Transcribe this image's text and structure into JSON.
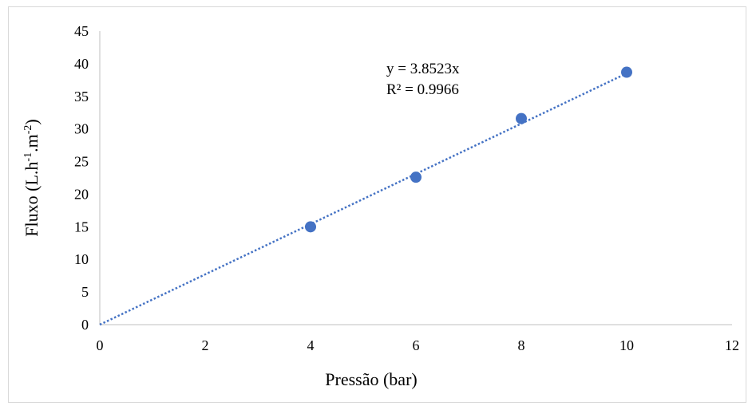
{
  "chart_data": {
    "type": "scatter",
    "title": "",
    "xlabel": "Pressão (bar)",
    "ylabel": {
      "base": "Fluxo (L.h",
      "exp1": "-1",
      "mid": ".m",
      "exp2": "-2",
      "end": ")"
    },
    "xlim": [
      0,
      12
    ],
    "ylim": [
      0,
      45
    ],
    "x_ticks": [
      0,
      2,
      4,
      6,
      8,
      10,
      12
    ],
    "y_ticks": [
      0,
      5,
      10,
      15,
      20,
      25,
      30,
      35,
      40,
      45
    ],
    "grid": false,
    "series": [
      {
        "x": [
          4,
          6,
          8,
          10
        ],
        "y": [
          15.0,
          22.6,
          31.6,
          38.7
        ],
        "color": "#4472C4",
        "marker": "circle"
      }
    ],
    "trendline": {
      "type": "linear-through-origin",
      "slope": 3.8523,
      "x_range": [
        0,
        10
      ],
      "style": "dotted",
      "color": "#4472C4",
      "equation": "y = 3.8523x",
      "r_squared": "R² = 0.9966"
    }
  }
}
